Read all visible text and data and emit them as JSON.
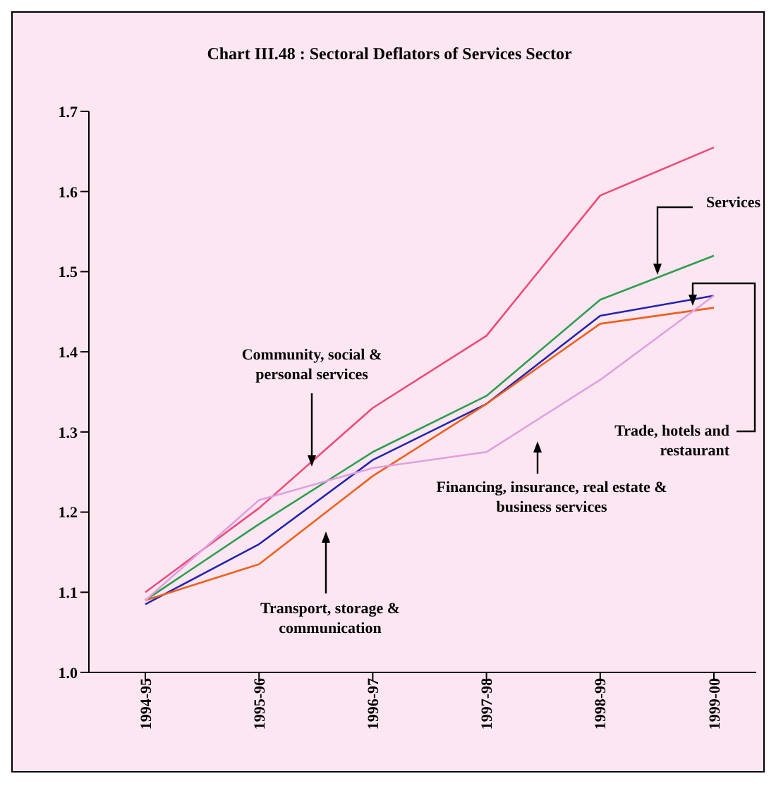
{
  "chart_data": {
    "type": "line",
    "title": "Chart III.48 : Sectoral Deflators of Services Sector",
    "categories": [
      "1994-95",
      "1995-96",
      "1996-97",
      "1997-98",
      "1998-99",
      "1999-00"
    ],
    "series": [
      {
        "name": "Community, social & personal services",
        "color": "#f04a78",
        "values": [
          1.1,
          1.205,
          1.33,
          1.42,
          1.595,
          1.655
        ]
      },
      {
        "name": "Services",
        "color": "#2e9e50",
        "values": [
          1.09,
          1.185,
          1.275,
          1.345,
          1.465,
          1.52
        ]
      },
      {
        "name": "Trade, hotels and restaurant",
        "color": "#2424b0",
        "values": [
          1.085,
          1.16,
          1.265,
          1.335,
          1.445,
          1.47
        ]
      },
      {
        "name": "Transport, storage & communication",
        "color": "#f0601e",
        "values": [
          1.09,
          1.135,
          1.245,
          1.335,
          1.435,
          1.455
        ]
      },
      {
        "name": "Financing, insurance, real estate & business services",
        "color": "#e0a0e0",
        "values": [
          1.09,
          1.215,
          1.255,
          1.275,
          1.365,
          1.47
        ]
      }
    ],
    "ylim": [
      1.0,
      1.7
    ],
    "yticks": [
      {
        "value": 1.0,
        "label": "1.0"
      },
      1.1,
      1.2,
      1.3,
      1.4,
      1.5,
      1.6,
      1.7
    ],
    "grid": false,
    "legend": false,
    "marker": "none",
    "line_style": "solid"
  }
}
